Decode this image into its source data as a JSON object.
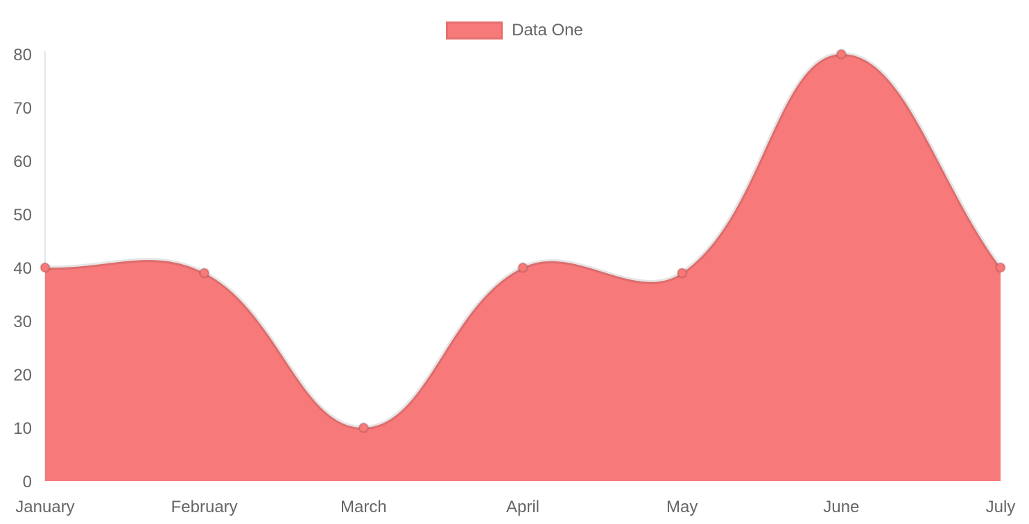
{
  "chart_data": {
    "type": "area",
    "title": "",
    "categories": [
      "January",
      "February",
      "March",
      "April",
      "May",
      "June",
      "July"
    ],
    "series": [
      {
        "name": "Data One",
        "values": [
          40,
          39,
          10,
          40,
          39,
          80,
          40
        ],
        "color": "#f87979"
      }
    ],
    "xlabel": "",
    "ylabel": "",
    "ylim": [
      0,
      80
    ],
    "yticks": [
      0,
      10,
      20,
      30,
      40,
      50,
      60,
      70,
      80
    ],
    "grid": false,
    "legend_position": "top",
    "line_border_color": "rgba(0,0,0,0.1)",
    "point_border_color": "rgba(0,0,0,0.12)",
    "axis_line_color": "rgba(0,0,0,0.1)",
    "tick_color": "#666"
  }
}
